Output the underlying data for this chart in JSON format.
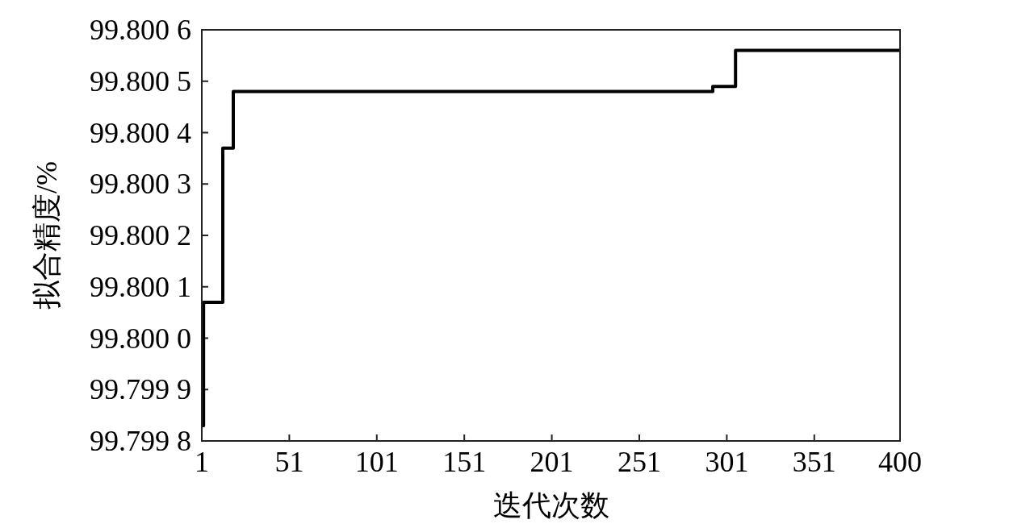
{
  "chart_data": {
    "type": "step",
    "xlabel": "迭代次数",
    "ylabel": "拟合精度/%",
    "x": [
      1,
      2,
      13,
      19,
      293,
      306,
      400
    ],
    "values": [
      99.79983,
      99.80007,
      99.80037,
      99.80048,
      99.80049,
      99.80056,
      99.80056
    ],
    "color": "#000000",
    "xlim": [
      1,
      400
    ],
    "xticks": [
      1,
      51,
      101,
      151,
      201,
      251,
      301,
      351,
      400
    ],
    "ylim": [
      99.7998,
      99.8006
    ],
    "yticks": [
      99.7998,
      99.7999,
      {
        "value": 99.8,
        "label": "99.8000"
      },
      99.8001,
      99.8002,
      99.8003,
      99.8004,
      99.8005,
      99.8006
    ]
  }
}
